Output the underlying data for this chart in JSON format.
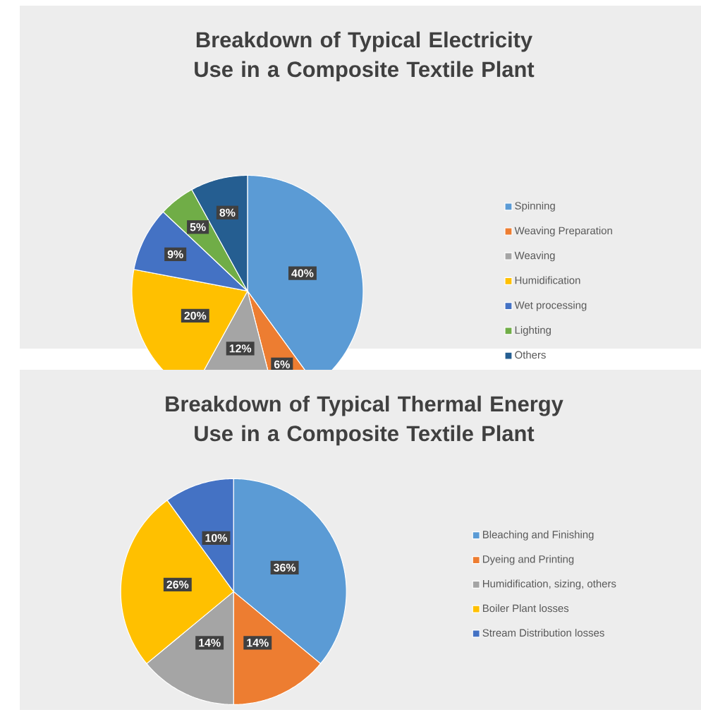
{
  "chart_data": [
    {
      "type": "pie",
      "title": "Breakdown of Typical Electricity Use in a Composite Textile Plant",
      "categories": [
        "Spinning",
        "Weaving Preparation",
        "Weaving",
        "Humidification",
        "Wet processing",
        "Lighting",
        "Others"
      ],
      "values": [
        40,
        6,
        12,
        20,
        9,
        5,
        8
      ],
      "value_labels": [
        "40%",
        "6%",
        "12%",
        "20%",
        "9%",
        "5%",
        "8%"
      ],
      "colors": [
        "#5b9bd5",
        "#ed7d31",
        "#a5a5a5",
        "#ffc000",
        "#4472c4",
        "#70ad47",
        "#255e91"
      ],
      "legend": "right"
    },
    {
      "type": "pie",
      "title": "Breakdown of Typical Thermal Energy Use in a Composite Textile Plant",
      "categories": [
        "Bleaching and Finishing",
        "Dyeing and Printing",
        "Humidification, sizing, others",
        "Boiler Plant losses",
        "Stream Distribution losses"
      ],
      "values": [
        36,
        14,
        14,
        26,
        10
      ],
      "value_labels": [
        "36%",
        "14%",
        "14%",
        "26%",
        "10%"
      ],
      "colors": [
        "#5b9bd5",
        "#ed7d31",
        "#a5a5a5",
        "#ffc000",
        "#4472c4"
      ],
      "legend": "right"
    }
  ]
}
